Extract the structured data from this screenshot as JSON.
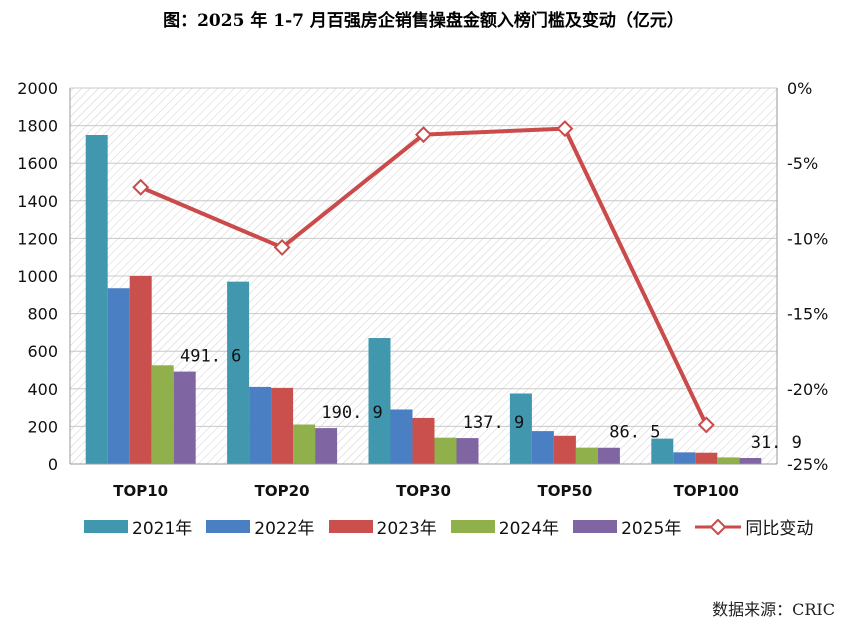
{
  "title": "图：2025 年 1-7 月百强房企销售操盘金额入榜门槛及变动（亿元）",
  "source": "数据来源：CRIC",
  "chart_data": {
    "type": "bar",
    "categories": [
      "TOP10",
      "TOP20",
      "TOP30",
      "TOP50",
      "TOP100"
    ],
    "series": [
      {
        "name": "2021年",
        "color": "#4197AD",
        "values": [
          1750,
          970,
          670,
          375,
          135
        ]
      },
      {
        "name": "2022年",
        "color": "#4A7FC4",
        "values": [
          935,
          410,
          290,
          175,
          62
        ]
      },
      {
        "name": "2023年",
        "color": "#C9504C",
        "values": [
          1000,
          405,
          245,
          150,
          60
        ]
      },
      {
        "name": "2024年",
        "color": "#8FB04A",
        "values": [
          525,
          210,
          140,
          87,
          35
        ]
      },
      {
        "name": "2025年",
        "color": "#7F66A3",
        "values": [
          491.6,
          190.9,
          137.9,
          86.5,
          31.9
        ]
      }
    ],
    "line_series": {
      "name": "同比变动",
      "color": "#CB4A4A",
      "values": [
        -6.6,
        -10.6,
        -3.1,
        -2.7,
        -22.4
      ],
      "axis": "right"
    },
    "data_labels": [
      "491. 6",
      "190. 9",
      "137. 9",
      "86. 5",
      "31. 9"
    ],
    "yleft": {
      "min": 0,
      "max": 2000,
      "ticks": [
        "0",
        "200",
        "400",
        "600",
        "800",
        "1000",
        "1200",
        "1400",
        "1600",
        "1800",
        "2000"
      ]
    },
    "yright": {
      "min": -25,
      "max": 0,
      "ticks": [
        "-25%",
        "-20%",
        "-15%",
        "-10%",
        "-5%",
        "0%"
      ]
    },
    "grid": true,
    "legend_position": "bottom"
  }
}
